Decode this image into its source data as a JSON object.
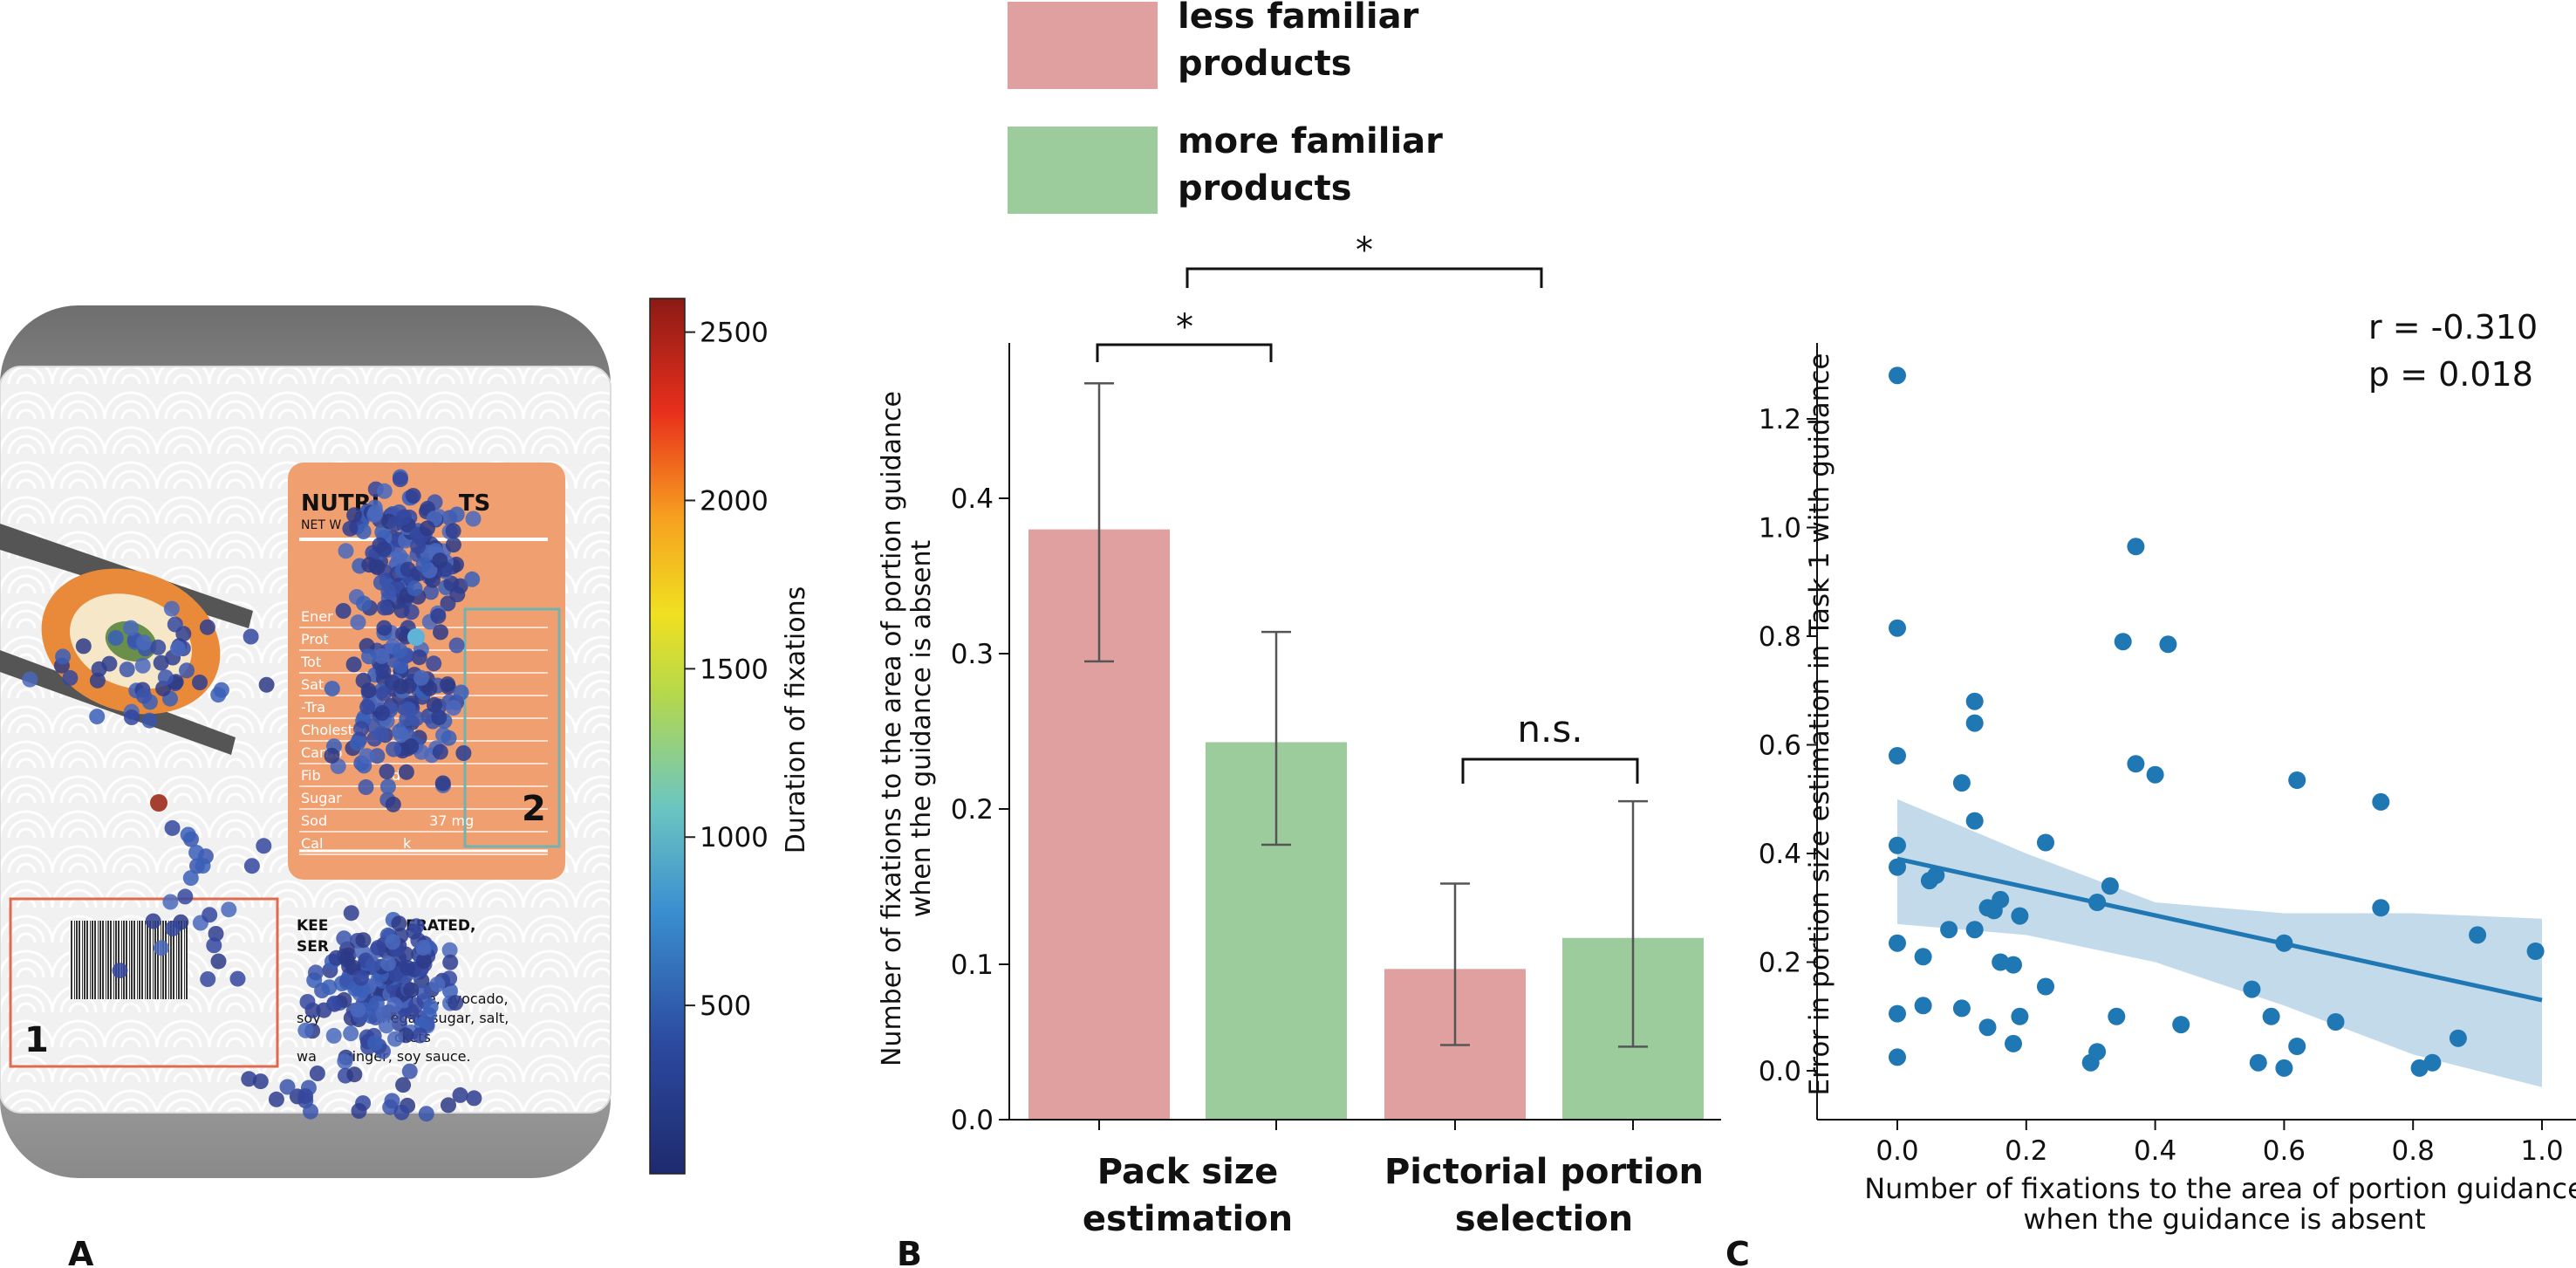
{
  "panel_labels": {
    "a": "A",
    "b": "B",
    "c": "C"
  },
  "colors": {
    "less_familiar": "#e0a0a0",
    "more_familiar": "#9ccc9c",
    "scatter_point": "#1f77b4",
    "ci_band": "#b9d3e6",
    "nutrition_panel": "#f0a070",
    "aoi_box_1": "#e06a50",
    "aoi_box_2": "#6fb3b3"
  },
  "panel_a": {
    "colorbar_label": "Duration of fixations",
    "colorbar_ticks": [
      "500",
      "1000",
      "1500",
      "2000",
      "2500"
    ],
    "aoi_labels": [
      "1",
      "2"
    ],
    "package_texts": {
      "nutrition_title": "NUTRI          TS",
      "net_weight": "NET W              (S)",
      "rows": [
        "Ener",
        "Prot",
        "Tot",
        "Sat",
        "-Tra",
        "Cholester      mg",
        "Carbo",
        "Fib                d",
        "Sugar",
        "Sod                       37 mg",
        "Cal                  k"
      ],
      "keep_line1": "KEE               ERATED,",
      "keep_line2": "SER",
      "ingredients_1": "rice, avocado,",
      "ingredients_2": "soy           vinegar, sugar, salt,",
      "ingredients_3": "                      ckets",
      "ingredients_4": "wa      ginger, soy sauce."
    }
  },
  "chart_data": [
    {
      "panel": "B",
      "type": "bar",
      "categories": [
        "Pack size estimation",
        "Pictorial portion selection"
      ],
      "category_lines": [
        [
          "Pack size",
          "estimation"
        ],
        [
          "Pictorial portion",
          "selection"
        ]
      ],
      "series": [
        {
          "name": "less familiar products",
          "legend_lines": [
            "less familiar",
            "products"
          ],
          "values": [
            0.38,
            0.097
          ],
          "ci_low": [
            0.295,
            0.048
          ],
          "ci_high": [
            0.474,
            0.152
          ]
        },
        {
          "name": "more familiar products",
          "legend_lines": [
            "more familiar",
            "products"
          ],
          "values": [
            0.243,
            0.117
          ],
          "ci_low": [
            0.177,
            0.047
          ],
          "ci_high": [
            0.314,
            0.205
          ]
        }
      ],
      "ylabel_lines": [
        "Number of fixations to the area of portion guidance",
        "when the guidance is absent"
      ],
      "ylim": [
        0,
        0.5
      ],
      "yticks": [
        "0.0",
        "0.1",
        "0.2",
        "0.3",
        "0.4"
      ],
      "annotations": [
        "*",
        "*",
        "n.s."
      ],
      "legend_position": "top"
    },
    {
      "panel": "C",
      "type": "scatter",
      "xlabel_lines": [
        "Number of fixations to the area of portion guidance",
        "when the guidance is absent"
      ],
      "ylabel": "Error in portion size estimation in Task 1 with guidance",
      "xlim": [
        -0.04,
        1.05
      ],
      "ylim": [
        -0.09,
        1.35
      ],
      "xticks": [
        "0.0",
        "0.2",
        "0.4",
        "0.6",
        "0.8",
        "1.0"
      ],
      "yticks": [
        "0.0",
        "0.2",
        "0.4",
        "0.6",
        "0.8",
        "1.0",
        "1.2"
      ],
      "annotation_lines": [
        "r = -0.310",
        "p = 0.018"
      ],
      "regression": {
        "x0": 0.0,
        "y0": 0.39,
        "x1": 1.0,
        "y1": 0.13
      },
      "ci_band": {
        "x": [
          0.0,
          0.2,
          0.4,
          0.6,
          0.8,
          1.0
        ],
        "lower": [
          0.27,
          0.25,
          0.2,
          0.12,
          0.03,
          -0.03
        ],
        "upper": [
          0.5,
          0.4,
          0.31,
          0.29,
          0.29,
          0.28
        ]
      },
      "points": [
        [
          0.0,
          1.28
        ],
        [
          0.0,
          0.815
        ],
        [
          0.0,
          0.58
        ],
        [
          0.0,
          0.415
        ],
        [
          0.0,
          0.375
        ],
        [
          0.0,
          0.235
        ],
        [
          0.0,
          0.105
        ],
        [
          0.0,
          0.025
        ],
        [
          0.04,
          0.21
        ],
        [
          0.04,
          0.12
        ],
        [
          0.05,
          0.35
        ],
        [
          0.06,
          0.36
        ],
        [
          0.08,
          0.26
        ],
        [
          0.1,
          0.53
        ],
        [
          0.1,
          0.115
        ],
        [
          0.12,
          0.68
        ],
        [
          0.12,
          0.64
        ],
        [
          0.12,
          0.46
        ],
        [
          0.12,
          0.26
        ],
        [
          0.14,
          0.3
        ],
        [
          0.14,
          0.08
        ],
        [
          0.15,
          0.295
        ],
        [
          0.16,
          0.315
        ],
        [
          0.16,
          0.2
        ],
        [
          0.18,
          0.195
        ],
        [
          0.18,
          0.05
        ],
        [
          0.19,
          0.285
        ],
        [
          0.19,
          0.1
        ],
        [
          0.23,
          0.155
        ],
        [
          0.23,
          0.42
        ],
        [
          0.3,
          0.015
        ],
        [
          0.31,
          0.035
        ],
        [
          0.31,
          0.31
        ],
        [
          0.33,
          0.34
        ],
        [
          0.34,
          0.1
        ],
        [
          0.35,
          0.79
        ],
        [
          0.37,
          0.965
        ],
        [
          0.37,
          0.565
        ],
        [
          0.4,
          0.545
        ],
        [
          0.42,
          0.785
        ],
        [
          0.44,
          0.085
        ],
        [
          0.55,
          0.15
        ],
        [
          0.56,
          0.015
        ],
        [
          0.58,
          0.1
        ],
        [
          0.6,
          0.235
        ],
        [
          0.6,
          0.005
        ],
        [
          0.62,
          0.535
        ],
        [
          0.62,
          0.045
        ],
        [
          0.68,
          0.09
        ],
        [
          0.75,
          0.495
        ],
        [
          0.75,
          0.3
        ],
        [
          0.81,
          0.005
        ],
        [
          0.83,
          0.015
        ],
        [
          0.87,
          0.06
        ],
        [
          0.9,
          0.25
        ],
        [
          0.99,
          0.22
        ]
      ]
    }
  ]
}
